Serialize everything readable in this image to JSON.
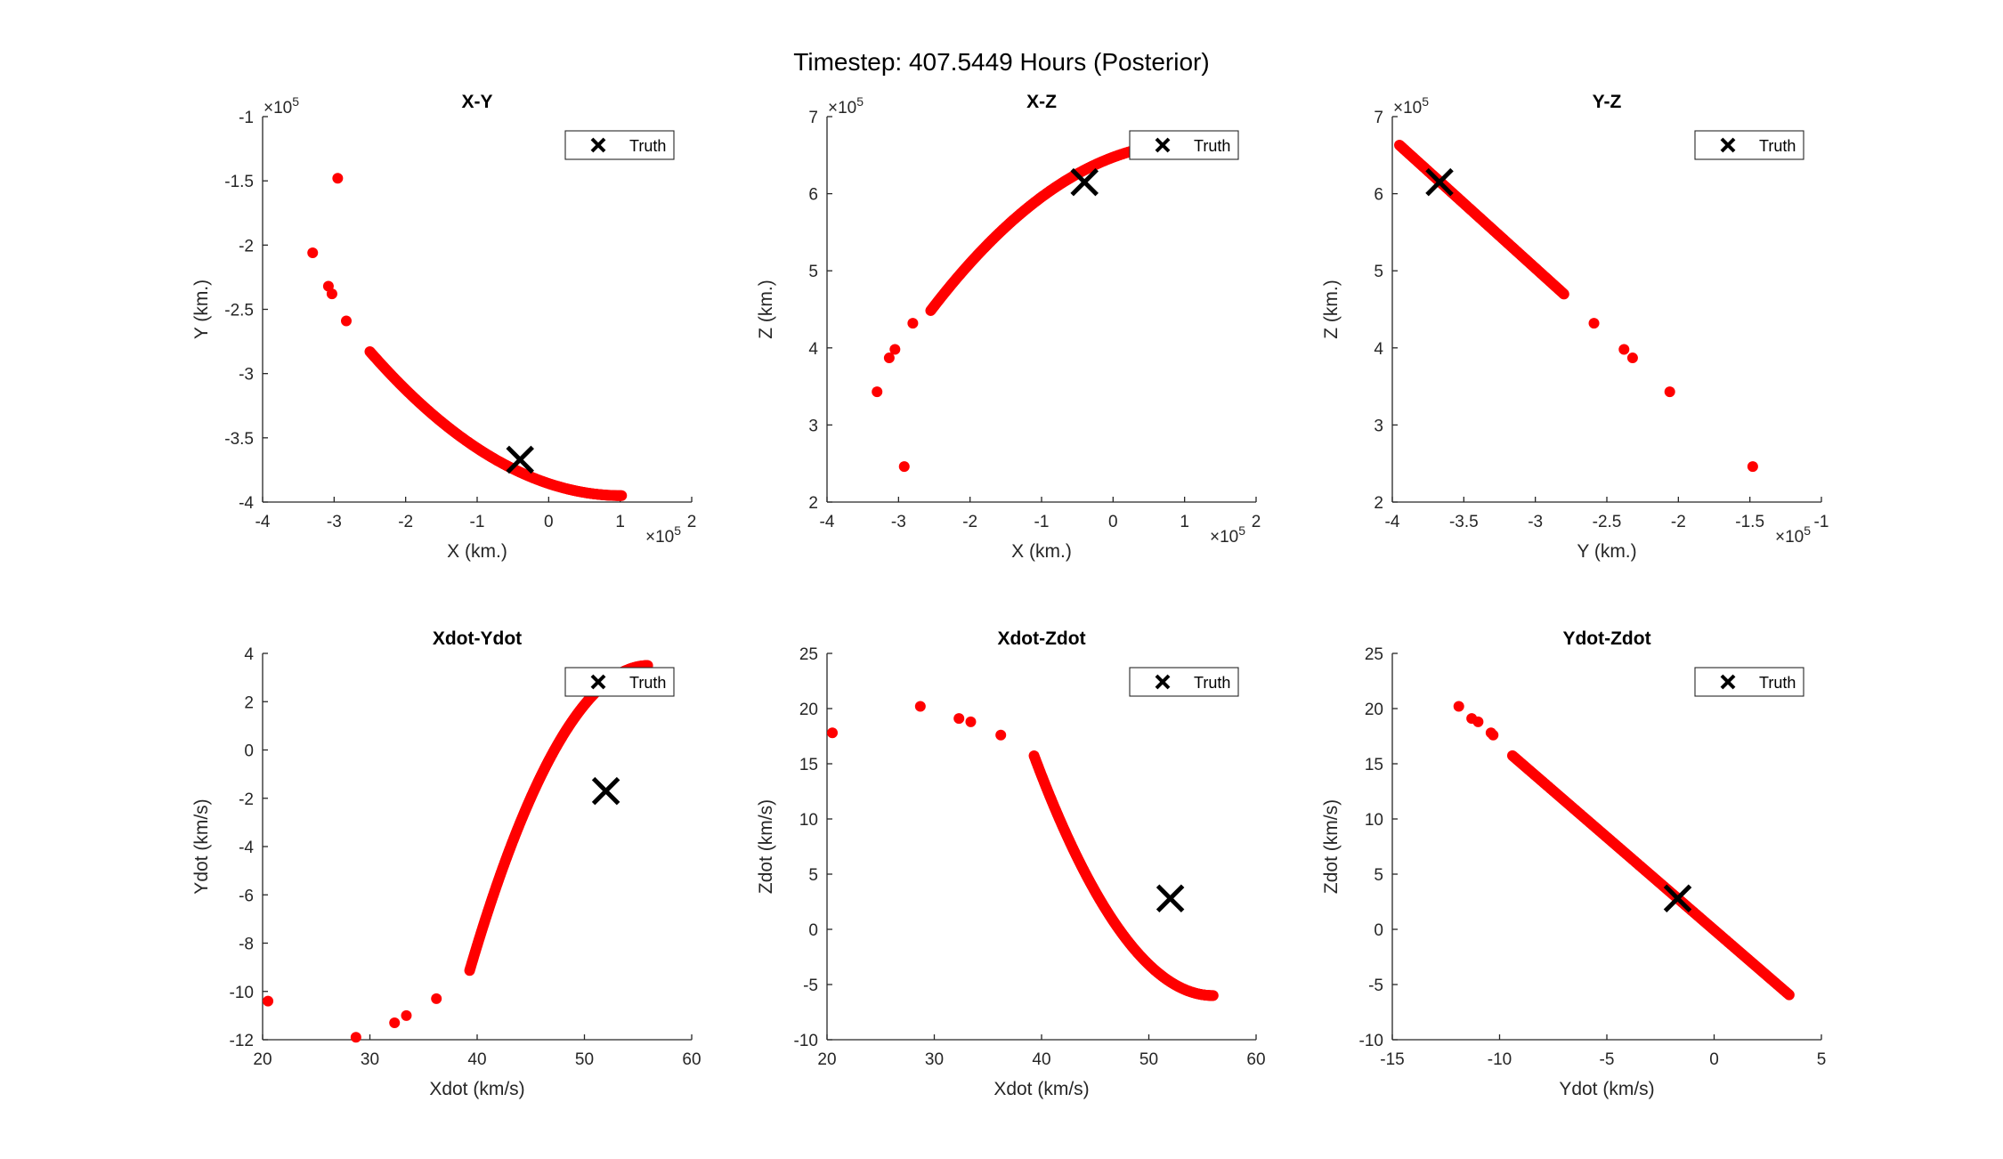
{
  "figure": {
    "title": "Timestep: 407.5449 Hours (Posterior)",
    "point_color": "#ff0000",
    "truth_color": "#000000"
  },
  "chart_data": [
    {
      "type": "scatter",
      "title": "X-Y",
      "xlabel": "X (km.)",
      "ylabel": "Y (km.)",
      "xlim": [
        -400000,
        200000
      ],
      "ylim": [
        -400000,
        -100000
      ],
      "xticks": [
        -400000,
        -300000,
        -200000,
        -100000,
        0,
        100000,
        200000
      ],
      "xtick_labels": [
        "-4",
        "-3",
        "-2",
        "-1",
        "0",
        "1",
        "2"
      ],
      "yticks": [
        -400000,
        -350000,
        -300000,
        -250000,
        -200000,
        -150000,
        -100000
      ],
      "ytick_labels": [
        "-4",
        "-3.5",
        "-3",
        "-2.5",
        "-2",
        "-1.5",
        "-1"
      ],
      "x_exponent": "×10",
      "x_exponent_power": "5",
      "y_exponent": "×10",
      "y_exponent_power": "5",
      "legend": [
        "Truth"
      ],
      "legend_location": "top-right",
      "truth": [
        -40000,
        -367000
      ],
      "outliers": [
        [
          -295000,
          -148000
        ],
        [
          -330000,
          -206000
        ],
        [
          -308000,
          -232000
        ],
        [
          -303000,
          -238000
        ],
        [
          -283000,
          -259000
        ]
      ],
      "curve_x_range": [
        -250000,
        102000
      ],
      "curve_form": "Y = -395000 + 0.000000905 * (X - 102000)^2"
    },
    {
      "type": "scatter",
      "title": "X-Z",
      "xlabel": "X (km.)",
      "ylabel": "Z (km.)",
      "xlim": [
        -400000,
        200000
      ],
      "ylim": [
        200000,
        700000
      ],
      "xticks": [
        -400000,
        -300000,
        -200000,
        -100000,
        0,
        100000,
        200000
      ],
      "xtick_labels": [
        "-4",
        "-3",
        "-2",
        "-1",
        "0",
        "1",
        "2"
      ],
      "yticks": [
        200000,
        300000,
        400000,
        500000,
        600000,
        700000
      ],
      "ytick_labels": [
        "2",
        "3",
        "4",
        "5",
        "6",
        "7"
      ],
      "x_exponent": "×10",
      "x_exponent_power": "5",
      "y_exponent": "×10",
      "y_exponent_power": "5",
      "legend": [
        "Truth"
      ],
      "legend_location": "top-right",
      "truth": [
        -40000,
        615000
      ],
      "outliers": [
        [
          -330000,
          343000
        ],
        [
          -313000,
          387000
        ],
        [
          -305000,
          398000
        ],
        [
          -292000,
          246000
        ],
        [
          -280000,
          432000
        ]
      ],
      "curve_x_range": [
        -255000,
        80000
      ],
      "curve_form": "Z = 665000 - 0.0000017 * (X - 102000)^2"
    },
    {
      "type": "scatter",
      "title": "Y-Z",
      "xlabel": "Y (km.)",
      "ylabel": "Z (km.)",
      "xlim": [
        -400000,
        -100000
      ],
      "ylim": [
        200000,
        700000
      ],
      "xticks": [
        -400000,
        -350000,
        -300000,
        -250000,
        -200000,
        -150000,
        -100000
      ],
      "xtick_labels": [
        "-4",
        "-3.5",
        "-3",
        "-2.5",
        "-2",
        "-1.5",
        "-1"
      ],
      "yticks": [
        200000,
        300000,
        400000,
        500000,
        600000,
        700000
      ],
      "ytick_labels": [
        "2",
        "3",
        "4",
        "5",
        "6",
        "7"
      ],
      "x_exponent": "×10",
      "x_exponent_power": "5",
      "y_exponent": "×10",
      "y_exponent_power": "5",
      "legend": [
        "Truth"
      ],
      "legend_location": "top-right",
      "truth": [
        -367000,
        615000
      ],
      "outliers": [
        [
          -148000,
          246000
        ],
        [
          -206000,
          343000
        ],
        [
          -232000,
          387000
        ],
        [
          -238000,
          398000
        ],
        [
          -259000,
          432000
        ]
      ],
      "curve_x_range": [
        -395000,
        -280000
      ],
      "curve_form": "Z = 663000 + 1.68 * (-395000 - Y)"
    },
    {
      "type": "scatter",
      "title": "Xdot-Ydot",
      "xlabel": "Xdot (km/s)",
      "ylabel": "Ydot (km/s)",
      "xlim": [
        20,
        60
      ],
      "ylim": [
        -12,
        4
      ],
      "xticks": [
        20,
        30,
        40,
        50,
        60
      ],
      "xtick_labels": [
        "20",
        "30",
        "40",
        "50",
        "60"
      ],
      "yticks": [
        -12,
        -10,
        -8,
        -6,
        -4,
        -2,
        0,
        2,
        4
      ],
      "ytick_labels": [
        "-12",
        "-10",
        "-8",
        "-6",
        "-4",
        "-2",
        "0",
        "2",
        "4"
      ],
      "legend": [
        "Truth"
      ],
      "legend_location": "top-right",
      "truth": [
        52,
        -1.7
      ],
      "outliers": [
        [
          20.5,
          -10.4
        ],
        [
          28.7,
          -11.9
        ],
        [
          32.3,
          -11.3
        ],
        [
          33.4,
          -11.0
        ],
        [
          36.2,
          -10.3
        ]
      ],
      "curve_x_range": [
        39.3,
        55.9
      ],
      "curve_form": "Ydot = 3.5 - 0.0453 * (56 - Xdot)^2"
    },
    {
      "type": "scatter",
      "title": "Xdot-Zdot",
      "xlabel": "Xdot (km/s)",
      "ylabel": "Zdot (km/s)",
      "xlim": [
        20,
        60
      ],
      "ylim": [
        -10,
        25
      ],
      "xticks": [
        20,
        30,
        40,
        50,
        60
      ],
      "xtick_labels": [
        "20",
        "30",
        "40",
        "50",
        "60"
      ],
      "yticks": [
        -10,
        -5,
        0,
        5,
        10,
        15,
        20,
        25
      ],
      "ytick_labels": [
        "-10",
        "-5",
        "0",
        "5",
        "10",
        "15",
        "20",
        "25"
      ],
      "legend": [
        "Truth"
      ],
      "legend_location": "top-right",
      "truth": [
        52,
        2.8
      ],
      "outliers": [
        [
          20.5,
          17.8
        ],
        [
          28.7,
          20.2
        ],
        [
          32.3,
          19.1
        ],
        [
          33.4,
          18.8
        ],
        [
          36.2,
          17.6
        ]
      ],
      "curve_x_range": [
        39.3,
        56
      ],
      "curve_form": "Zdot = -6 + 0.0779 * (56 - Xdot)^2"
    },
    {
      "type": "scatter",
      "title": "Ydot-Zdot",
      "xlabel": "Ydot (km/s)",
      "ylabel": "Zdot (km/s)",
      "xlim": [
        -15,
        5
      ],
      "ylim": [
        -10,
        25
      ],
      "xticks": [
        -15,
        -10,
        -5,
        0,
        5
      ],
      "xtick_labels": [
        "-15",
        "-10",
        "-5",
        "0",
        "5"
      ],
      "yticks": [
        -10,
        -5,
        0,
        5,
        10,
        15,
        20,
        25
      ],
      "ytick_labels": [
        "-10",
        "-5",
        "0",
        "5",
        "10",
        "15",
        "20",
        "25"
      ],
      "legend": [
        "Truth"
      ],
      "legend_location": "top-right",
      "truth": [
        -1.7,
        2.8
      ],
      "outliers": [
        [
          -11.9,
          20.2
        ],
        [
          -11.3,
          19.1
        ],
        [
          -11.0,
          18.8
        ],
        [
          -10.3,
          17.6
        ],
        [
          -10.4,
          17.8
        ]
      ],
      "curve_x_range": [
        -9.4,
        3.5
      ],
      "curve_form": "Zdot = 2.8 - 1.68 * (Ydot + 1.7)"
    }
  ]
}
